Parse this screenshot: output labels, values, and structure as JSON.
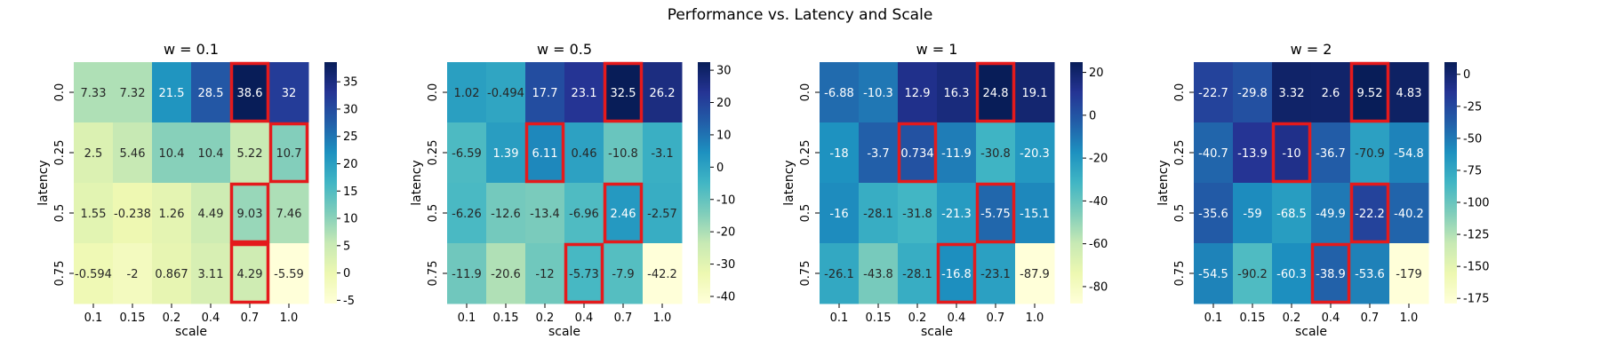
{
  "figure": {
    "suptitle": "Performance vs. Latency and Scale"
  },
  "colormap": [
    "#ffffd9",
    "#edf8b1",
    "#c7e9b4",
    "#7fcdbb",
    "#41b6c4",
    "#1d91c0",
    "#225ea8",
    "#253494",
    "#081d58"
  ],
  "highlight_color": "#e41a1c",
  "chart_data": [
    {
      "type": "heatmap",
      "title": "w = 0.1",
      "xlabel": "scale",
      "ylabel": "latency",
      "x_categories": [
        "0.1",
        "0.15",
        "0.2",
        "0.4",
        "0.7",
        "1.0"
      ],
      "y_categories": [
        "0.0",
        "0.25",
        "0.5",
        "0.75"
      ],
      "values": [
        [
          7.33,
          7.32,
          21.5,
          28.5,
          38.6,
          32
        ],
        [
          2.5,
          5.46,
          10.4,
          10.4,
          5.22,
          10.7
        ],
        [
          1.55,
          -0.238,
          1.26,
          4.49,
          9.03,
          7.46
        ],
        [
          -0.594,
          -2,
          0.867,
          3.11,
          4.29,
          -5.59
        ]
      ],
      "value_labels": [
        [
          "7.33",
          "7.32",
          "21.5",
          "28.5",
          "38.6",
          "32"
        ],
        [
          "2.5",
          "5.46",
          "10.4",
          "10.4",
          "5.22",
          "10.7"
        ],
        [
          "1.55",
          "-0.238",
          "1.26",
          "4.49",
          "9.03",
          "7.46"
        ],
        [
          "-0.594",
          "-2",
          "0.867",
          "3.11",
          "4.29",
          "-5.59"
        ]
      ],
      "color_range": [
        -5.59,
        38.6
      ],
      "colorbar_ticks": [
        -5,
        0,
        5,
        10,
        15,
        20,
        25,
        30,
        35
      ],
      "highlighted_cells": [
        [
          0,
          4
        ],
        [
          1,
          5
        ],
        [
          2,
          4
        ],
        [
          3,
          4
        ]
      ]
    },
    {
      "type": "heatmap",
      "title": "w = 0.5",
      "xlabel": "scale",
      "ylabel": "latency",
      "x_categories": [
        "0.1",
        "0.15",
        "0.2",
        "0.4",
        "0.7",
        "1.0"
      ],
      "y_categories": [
        "0.0",
        "0.25",
        "0.5",
        "0.75"
      ],
      "values": [
        [
          1.02,
          -0.494,
          17.7,
          23.1,
          32.5,
          26.2
        ],
        [
          -6.59,
          1.39,
          6.11,
          0.46,
          -10.8,
          -3.1
        ],
        [
          -6.26,
          -12.6,
          -13.4,
          -6.96,
          2.46,
          -2.57
        ],
        [
          -11.9,
          -20.6,
          -12,
          -5.73,
          -7.9,
          -42.2
        ]
      ],
      "value_labels": [
        [
          "1.02",
          "-0.494",
          "17.7",
          "23.1",
          "32.5",
          "26.2"
        ],
        [
          "-6.59",
          "1.39",
          "6.11",
          "0.46",
          "-10.8",
          "-3.1"
        ],
        [
          "-6.26",
          "-12.6",
          "-13.4",
          "-6.96",
          "2.46",
          "-2.57"
        ],
        [
          "-11.9",
          "-20.6",
          "-12",
          "-5.73",
          "-7.9",
          "-42.2"
        ]
      ],
      "color_range": [
        -42.2,
        32.5
      ],
      "colorbar_ticks": [
        -40,
        -30,
        -20,
        -10,
        0,
        10,
        20,
        30
      ],
      "highlighted_cells": [
        [
          0,
          4
        ],
        [
          1,
          2
        ],
        [
          2,
          4
        ],
        [
          3,
          3
        ]
      ]
    },
    {
      "type": "heatmap",
      "title": "w = 1",
      "xlabel": "scale",
      "ylabel": "latency",
      "x_categories": [
        "0.1",
        "0.15",
        "0.2",
        "0.4",
        "0.7",
        "1.0"
      ],
      "y_categories": [
        "0.0",
        "0.25",
        "0.5",
        "0.75"
      ],
      "values": [
        [
          -6.88,
          -10.3,
          12.9,
          16.3,
          24.8,
          19.1
        ],
        [
          -18,
          -3.7,
          0.734,
          -11.9,
          -30.8,
          -20.3
        ],
        [
          -16,
          -28.1,
          -31.8,
          -21.3,
          -5.75,
          -15.1
        ],
        [
          -26.1,
          -43.8,
          -28.1,
          -16.8,
          -23.1,
          -87.9
        ]
      ],
      "value_labels": [
        [
          "-6.88",
          "-10.3",
          "12.9",
          "16.3",
          "24.8",
          "19.1"
        ],
        [
          "-18",
          "-3.7",
          "0.734",
          "-11.9",
          "-30.8",
          "-20.3"
        ],
        [
          "-16",
          "-28.1",
          "-31.8",
          "-21.3",
          "-5.75",
          "-15.1"
        ],
        [
          "-26.1",
          "-43.8",
          "-28.1",
          "-16.8",
          "-23.1",
          "-87.9"
        ]
      ],
      "color_range": [
        -87.9,
        24.8
      ],
      "colorbar_ticks": [
        -80,
        -60,
        -40,
        -20,
        0,
        20
      ],
      "highlighted_cells": [
        [
          0,
          4
        ],
        [
          1,
          2
        ],
        [
          2,
          4
        ],
        [
          3,
          3
        ]
      ]
    },
    {
      "type": "heatmap",
      "title": "w = 2",
      "xlabel": "scale",
      "ylabel": "latency",
      "x_categories": [
        "0.1",
        "0.15",
        "0.2",
        "0.4",
        "0.7",
        "1.0"
      ],
      "y_categories": [
        "0.0",
        "0.25",
        "0.5",
        "0.75"
      ],
      "values": [
        [
          -22.7,
          -29.8,
          3.32,
          2.6,
          9.52,
          4.83
        ],
        [
          -40.7,
          -13.9,
          -10,
          -36.7,
          -70.9,
          -54.8
        ],
        [
          -35.6,
          -59,
          -68.5,
          -49.9,
          -22.2,
          -40.2
        ],
        [
          -54.5,
          -90.2,
          -60.3,
          -38.9,
          -53.6,
          -179
        ]
      ],
      "value_labels": [
        [
          "-22.7",
          "-29.8",
          "3.32",
          "2.6",
          "9.52",
          "4.83"
        ],
        [
          "-40.7",
          "-13.9",
          "-10",
          "-36.7",
          "-70.9",
          "-54.8"
        ],
        [
          "-35.6",
          "-59",
          "-68.5",
          "-49.9",
          "-22.2",
          "-40.2"
        ],
        [
          "-54.5",
          "-90.2",
          "-60.3",
          "-38.9",
          "-53.6",
          "-179"
        ]
      ],
      "color_range": [
        -179,
        9.52
      ],
      "colorbar_ticks": [
        -175,
        -150,
        -125,
        -100,
        -75,
        -50,
        -25,
        0
      ],
      "highlighted_cells": [
        [
          0,
          4
        ],
        [
          1,
          2
        ],
        [
          2,
          4
        ],
        [
          3,
          3
        ]
      ]
    }
  ]
}
